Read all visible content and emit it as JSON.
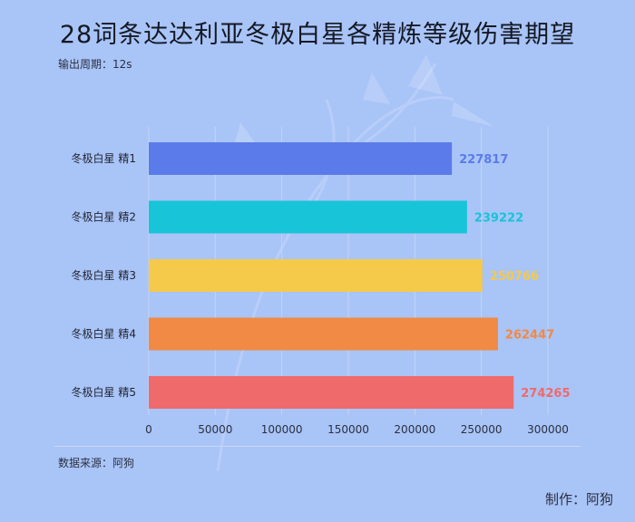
{
  "title": "28词条达达利亚冬极白星各精炼等级伤害期望",
  "subtitle": "输出周期：12s",
  "source": "数据来源：阿狗",
  "credit": "制作：阿狗",
  "chart_data": {
    "type": "bar",
    "orientation": "horizontal",
    "categories": [
      "冬极白星 精1",
      "冬极白星 精2",
      "冬极白星 精3",
      "冬极白星 精4",
      "冬极白星 精5"
    ],
    "values": [
      227817,
      239222,
      250766,
      262447,
      274265
    ],
    "colors": [
      "#5b7bea",
      "#18c4d8",
      "#f5c94a",
      "#f08a44",
      "#ef6a6a"
    ],
    "xlim": [
      0,
      300000
    ],
    "xticks": [
      0,
      50000,
      100000,
      150000,
      200000,
      250000,
      300000
    ],
    "grid": true,
    "legend": "none"
  }
}
